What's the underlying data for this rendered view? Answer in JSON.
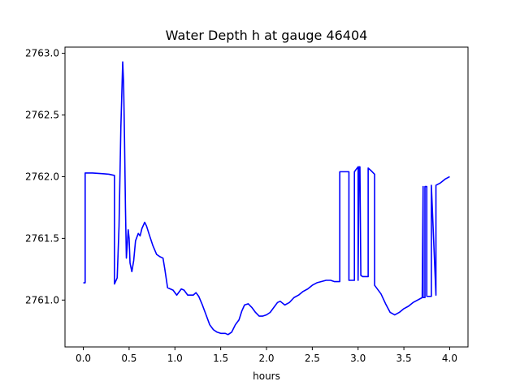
{
  "chart_data": {
    "type": "line",
    "title": "Water Depth h at gauge 46404",
    "xlabel": "hours",
    "ylabel": "",
    "xlim": [
      -0.2,
      4.2
    ],
    "ylim": [
      2760.62,
      2763.05
    ],
    "xticks": [
      0.0,
      0.5,
      1.0,
      1.5,
      2.0,
      2.5,
      3.0,
      3.5,
      4.0
    ],
    "xtick_labels": [
      "0.0",
      "0.5",
      "1.0",
      "1.5",
      "2.0",
      "2.5",
      "3.0",
      "3.5",
      "4.0"
    ],
    "yticks": [
      2761.0,
      2761.5,
      2762.0,
      2762.5,
      2763.0
    ],
    "ytick_labels": [
      "2761.0",
      "2761.5",
      "2762.0",
      "2762.5",
      "2763.0"
    ],
    "grid": false,
    "series": [
      {
        "color": "#0000ff",
        "x": [
          0.0,
          0.02,
          0.02,
          0.1,
          0.2,
          0.28,
          0.34,
          0.34,
          0.37,
          0.39,
          0.41,
          0.43,
          0.44,
          0.45,
          0.46,
          0.47,
          0.48,
          0.49,
          0.5,
          0.51,
          0.53,
          0.55,
          0.57,
          0.6,
          0.62,
          0.64,
          0.67,
          0.69,
          0.72,
          0.76,
          0.8,
          0.84,
          0.87,
          0.89,
          0.92,
          0.95,
          0.98,
          1.02,
          1.07,
          1.1,
          1.14,
          1.17,
          1.2,
          1.23,
          1.26,
          1.3,
          1.34,
          1.38,
          1.42,
          1.46,
          1.5,
          1.55,
          1.58,
          1.62,
          1.66,
          1.7,
          1.73,
          1.76,
          1.8,
          1.84,
          1.88,
          1.92,
          1.96,
          2.0,
          2.04,
          2.08,
          2.12,
          2.15,
          2.2,
          2.25,
          2.3,
          2.35,
          2.4,
          2.45,
          2.5,
          2.55,
          2.6,
          2.65,
          2.7,
          2.74,
          2.78,
          2.8,
          2.8,
          2.9,
          2.9,
          2.96,
          2.96,
          3.0,
          3.0,
          3.01,
          3.02,
          3.03,
          3.05,
          3.08,
          3.08,
          3.11,
          3.11,
          3.14,
          3.14,
          3.18,
          3.18,
          3.25,
          3.3,
          3.35,
          3.4,
          3.45,
          3.5,
          3.55,
          3.6,
          3.65,
          3.7,
          3.7,
          3.71,
          3.71,
          3.73,
          3.73,
          3.75,
          3.75,
          3.8,
          3.8,
          3.85,
          3.85,
          3.9,
          3.95,
          4.0
        ],
        "y": [
          2761.14,
          2761.14,
          2762.03,
          2762.03,
          2762.025,
          2762.02,
          2762.01,
          2761.13,
          2761.18,
          2761.6,
          2762.4,
          2762.93,
          2762.75,
          2762.3,
          2761.75,
          2761.34,
          2761.45,
          2761.57,
          2761.5,
          2761.3,
          2761.23,
          2761.32,
          2761.48,
          2761.54,
          2761.52,
          2761.58,
          2761.63,
          2761.6,
          2761.53,
          2761.44,
          2761.37,
          2761.35,
          2761.34,
          2761.25,
          2761.1,
          2761.09,
          2761.08,
          2761.04,
          2761.09,
          2761.08,
          2761.04,
          2761.04,
          2761.04,
          2761.06,
          2761.03,
          2760.96,
          2760.88,
          2760.8,
          2760.76,
          2760.74,
          2760.73,
          2760.73,
          2760.72,
          2760.74,
          2760.8,
          2760.84,
          2760.91,
          2760.96,
          2760.97,
          2760.94,
          2760.9,
          2760.87,
          2760.87,
          2760.88,
          2760.9,
          2760.94,
          2760.98,
          2760.99,
          2760.96,
          2760.98,
          2761.02,
          2761.04,
          2761.07,
          2761.09,
          2761.12,
          2761.14,
          2761.15,
          2761.16,
          2761.16,
          2761.15,
          2761.15,
          2761.15,
          2762.04,
          2762.04,
          2761.16,
          2761.16,
          2762.04,
          2762.08,
          2761.16,
          2762.08,
          2762.08,
          2761.2,
          2761.19,
          2761.19,
          2761.19,
          2761.19,
          2762.07,
          2762.05,
          2762.05,
          2762.02,
          2761.12,
          2761.05,
          2760.97,
          2760.9,
          2760.88,
          2760.9,
          2760.93,
          2760.95,
          2760.98,
          2761.0,
          2761.02,
          2761.02,
          2761.92,
          2761.02,
          2761.02,
          2761.92,
          2761.92,
          2761.03,
          2761.03,
          2761.93,
          2761.04,
          2761.93,
          2761.95,
          2761.98,
          2762.0
        ]
      }
    ]
  }
}
